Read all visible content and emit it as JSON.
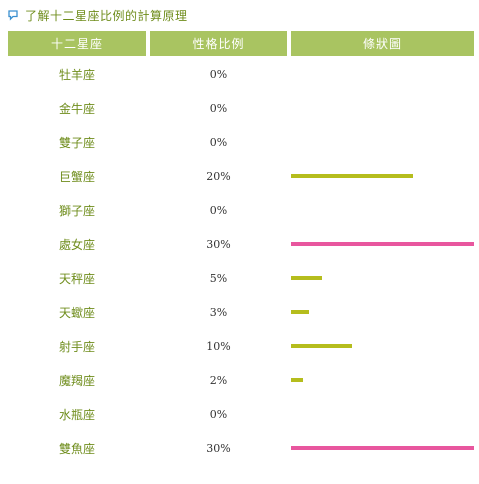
{
  "help_link": {
    "text": "了解十二星座比例的計算原理",
    "icon": "speech-bubble-icon"
  },
  "table": {
    "headers": {
      "sign": "十二星座",
      "percent": "性格比例",
      "bar": "條狀圖"
    },
    "colors": {
      "header_bg": "#a9c461",
      "sign_text": "#6f8d1c",
      "bar_normal": "#b5bd1d",
      "bar_max": "#e8569e"
    },
    "rows": [
      {
        "sign": "牡羊座",
        "percent_label": "0%",
        "value": 0,
        "highlight": false
      },
      {
        "sign": "金牛座",
        "percent_label": "0%",
        "value": 0,
        "highlight": false
      },
      {
        "sign": "雙子座",
        "percent_label": "0%",
        "value": 0,
        "highlight": false
      },
      {
        "sign": "巨蟹座",
        "percent_label": "20%",
        "value": 20,
        "highlight": false
      },
      {
        "sign": "獅子座",
        "percent_label": "0%",
        "value": 0,
        "highlight": false
      },
      {
        "sign": "處女座",
        "percent_label": "30%",
        "value": 30,
        "highlight": true
      },
      {
        "sign": "天秤座",
        "percent_label": "5%",
        "value": 5,
        "highlight": false
      },
      {
        "sign": "天蠍座",
        "percent_label": "3%",
        "value": 3,
        "highlight": false
      },
      {
        "sign": "射手座",
        "percent_label": "10%",
        "value": 10,
        "highlight": false
      },
      {
        "sign": "魔羯座",
        "percent_label": "2%",
        "value": 2,
        "highlight": false
      },
      {
        "sign": "水瓶座",
        "percent_label": "0%",
        "value": 0,
        "highlight": false
      },
      {
        "sign": "雙魚座",
        "percent_label": "30%",
        "value": 30,
        "highlight": true
      }
    ]
  }
}
